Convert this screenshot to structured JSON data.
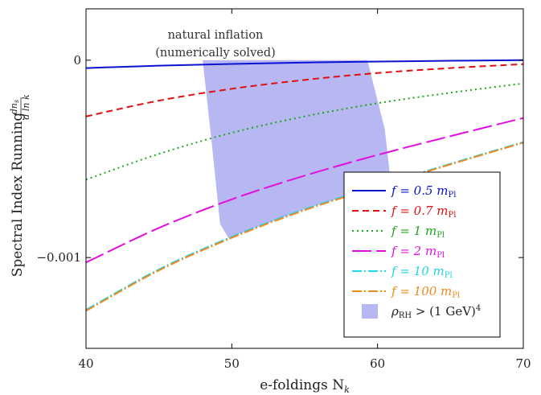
{
  "chart_data": {
    "type": "line",
    "xlabel": "e-foldings N",
    "xlabel_sub": "k",
    "ylabel": "Spectral Index Running",
    "ylabel_frac_num": "dn",
    "ylabel_frac_num_sub": "s",
    "ylabel_frac_den": "d ln k",
    "xlim": [
      40,
      70
    ],
    "ylim": [
      -0.00146,
      0.00026
    ],
    "xticks": [
      40,
      50,
      60,
      70
    ],
    "yticks": [
      {
        "value": 0,
        "label": "0"
      },
      {
        "value": -0.001,
        "label": "−0.001"
      }
    ],
    "annotation": [
      "natural inflation",
      "(numerically solved)"
    ],
    "legend_position": "lower-right",
    "series": [
      {
        "name": "f = 0.5 m",
        "color": "#0a14d2",
        "dash": "solid",
        "x": [
          40,
          45,
          50,
          55,
          60,
          65,
          70
        ],
        "y": [
          -4e-05,
          -2.8e-05,
          -1.9e-05,
          -1.2e-05,
          -7e-06,
          -3e-06,
          0.0
        ]
      },
      {
        "name": "f = 0.7 m",
        "color": "#e01010",
        "dash": "dashed",
        "x": [
          40,
          45,
          50,
          55,
          60,
          65,
          70
        ],
        "y": [
          -0.000285,
          -0.000205,
          -0.000145,
          -0.0001,
          -6.5e-05,
          -4e-05,
          -2e-05
        ]
      },
      {
        "name": "f = 1 m",
        "color": "#1fa61f",
        "dash": "dotted",
        "x": [
          40,
          45,
          50,
          55,
          60,
          65,
          70
        ],
        "y": [
          -0.000605,
          -0.000475,
          -0.000368,
          -0.000285,
          -0.000218,
          -0.000165,
          -0.000118
        ]
      },
      {
        "name": "f = 2 m",
        "color": "#e010e0",
        "dash": "longdash",
        "x": [
          40,
          45,
          50,
          55,
          60,
          65,
          70
        ],
        "y": [
          -0.001025,
          -0.00085,
          -0.000705,
          -0.000585,
          -0.00048,
          -0.000385,
          -0.000293
        ]
      },
      {
        "name": "f = 10 m",
        "color": "#22d4e6",
        "dash": "dashdot",
        "x": [
          40,
          45,
          50,
          55,
          60,
          65,
          70
        ],
        "y": [
          -0.001265,
          -0.00106,
          -0.000895,
          -0.000755,
          -0.000638,
          -0.000525,
          -0.000415
        ]
      },
      {
        "name": "f = 100 m",
        "color": "#ef8a1c",
        "dash": "dashdot",
        "x": [
          40,
          45,
          50,
          55,
          60,
          65,
          70
        ],
        "y": [
          -0.00127,
          -0.001065,
          -0.0009,
          -0.00076,
          -0.000642,
          -0.000528,
          -0.000418
        ]
      }
    ],
    "series_name_sub": "Pl",
    "region": {
      "name": "ρ",
      "name_sub": "RH",
      "name_tail": " > (1 GeV)",
      "name_sup": "4",
      "color": "#b7b7f2",
      "top": {
        "x": [
          48.0,
          59.3
        ],
        "y": 0.0
      },
      "left_edge": {
        "x": [
          48.0,
          48.6,
          49.2
        ],
        "y": [
          0.0,
          -0.0004,
          -0.00083
        ]
      },
      "right_edge": {
        "x": [
          59.3,
          60.5,
          60.9
        ],
        "y": [
          0.0,
          -0.00035,
          -0.0005
        ]
      }
    }
  }
}
